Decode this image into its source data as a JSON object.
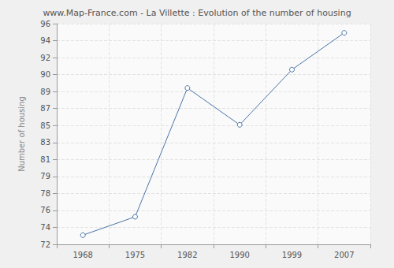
{
  "chart_data": {
    "type": "line",
    "title": "www.Map-France.com - La Villette : Evolution of the number of housing",
    "y_label": "Number of housing",
    "categories": [
      "1968",
      "1975",
      "1982",
      "1990",
      "1999",
      "2007"
    ],
    "values": [
      73,
      75,
      89,
      85,
      91,
      95
    ],
    "color": "#4a74a8",
    "marker": "circle",
    "grid": true,
    "ylim": [
      72,
      96
    ],
    "yticks": [
      72,
      {
        "value": 73.846,
        "label": "74"
      },
      {
        "value": 75.692,
        "label": "76"
      },
      {
        "value": 77.538,
        "label": "78"
      },
      {
        "value": 79.385,
        "label": "79"
      },
      {
        "value": 81.231,
        "label": "81"
      },
      {
        "value": 83.077,
        "label": "83"
      },
      {
        "value": 84.923,
        "label": "85"
      },
      {
        "value": 86.769,
        "label": "87"
      },
      {
        "value": 88.615,
        "label": "89"
      },
      {
        "value": 90.462,
        "label": "90"
      },
      {
        "value": 92.308,
        "label": "92"
      },
      {
        "value": 94.154,
        "label": "94"
      },
      96
    ]
  }
}
